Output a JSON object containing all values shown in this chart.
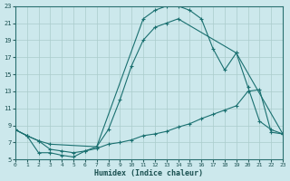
{
  "xlabel": "Humidex (Indice chaleur)",
  "bg_color": "#cce8ec",
  "grid_color": "#aacccc",
  "line_color": "#1a7070",
  "xlim": [
    0,
    23
  ],
  "ylim": [
    5,
    23
  ],
  "xticks": [
    0,
    1,
    2,
    3,
    4,
    5,
    6,
    7,
    8,
    9,
    10,
    11,
    12,
    13,
    14,
    15,
    16,
    17,
    18,
    19,
    20,
    21,
    22,
    23
  ],
  "yticks": [
    5,
    7,
    9,
    11,
    13,
    15,
    17,
    19,
    21,
    23
  ],
  "curve_arch_x": [
    0,
    1,
    2,
    3,
    7,
    11,
    12,
    13,
    14,
    15,
    16,
    17,
    18,
    19,
    23
  ],
  "curve_arch_y": [
    8.5,
    7.8,
    7.2,
    6.8,
    6.5,
    21.5,
    22.5,
    23.0,
    23.0,
    22.5,
    21.5,
    18.0,
    15.5,
    17.5,
    8.0
  ],
  "curve_steep_x": [
    0,
    1,
    2,
    3,
    4,
    5,
    6,
    7,
    8,
    9,
    10,
    11,
    12,
    13,
    14,
    19,
    20,
    21,
    22,
    23
  ],
  "curve_steep_y": [
    8.5,
    7.8,
    7.2,
    6.2,
    6.0,
    5.8,
    6.0,
    6.5,
    8.5,
    12.0,
    16.0,
    19.0,
    20.5,
    21.0,
    21.5,
    17.5,
    13.5,
    9.5,
    8.5,
    8.0
  ],
  "curve_flat_x": [
    0,
    1,
    2,
    3,
    4,
    5,
    6,
    7,
    8,
    9,
    10,
    11,
    12,
    13,
    14,
    15,
    16,
    17,
    18,
    19,
    20,
    21,
    22,
    23
  ],
  "curve_flat_y": [
    8.5,
    7.8,
    5.8,
    5.8,
    5.5,
    5.3,
    6.0,
    6.3,
    6.8,
    7.0,
    7.3,
    7.8,
    8.0,
    8.3,
    8.8,
    9.2,
    9.8,
    10.3,
    10.8,
    11.3,
    13.0,
    13.2,
    8.2,
    8.0
  ]
}
